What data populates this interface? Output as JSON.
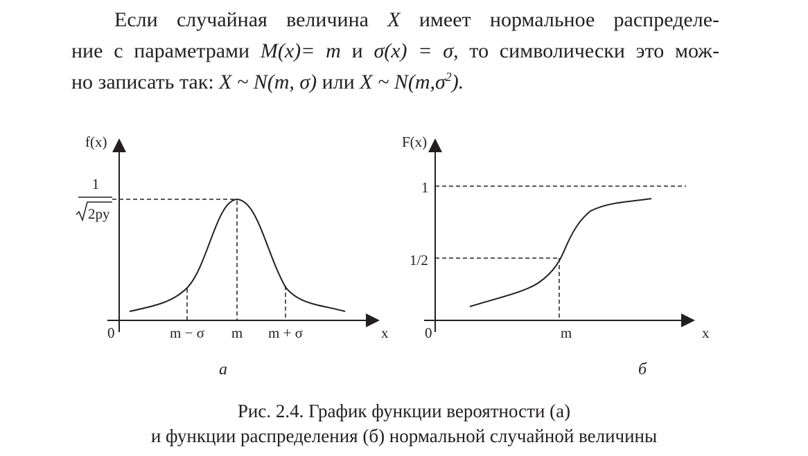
{
  "paragraph": {
    "line1": {
      "t1": "Если случайная величина ",
      "i1": "X",
      "t2": " имеет нормальное распределе-"
    },
    "line2": {
      "t1": "ние с параметрами ",
      "i1": "M(x)= m",
      "t2": " и ",
      "i2": "σ(x) = σ",
      "t3": ", то символически это мож-"
    },
    "line3": {
      "t1": "но записать так: ",
      "i1": "X ~ N(m, σ)",
      "t2": " или ",
      "i2": "X ~ N(m,σ",
      "sup": "2",
      "i3": ").",
      "t3": ""
    }
  },
  "figure_a": {
    "y_axis_label": "f(x)",
    "x_axis_label": "x",
    "origin_label": "0",
    "peak_label_numerator": "1",
    "peak_label_denominator": "2pу",
    "tick_labels": [
      "m − σ",
      "m",
      "m + σ"
    ],
    "sublabel": "а"
  },
  "figure_b": {
    "y_axis_label": "F(x)",
    "x_axis_label": "x",
    "origin_label": "0",
    "level_one_label": "1",
    "level_half_label": "1/2",
    "tick_label": "m",
    "sublabel": "б"
  },
  "caption": {
    "line1": "Рис. 2.4. График функции вероятности (а)",
    "line2": "и функции распределения (б) нормальной случайной величины"
  },
  "colors": {
    "ink": "#231f20",
    "background": "#ffffff"
  }
}
